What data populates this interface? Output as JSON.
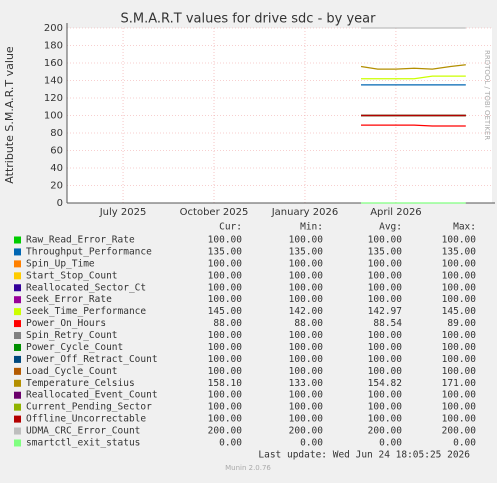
{
  "chart_data": {
    "type": "line",
    "title": "S.M.A.R.T values for drive sdc - by year",
    "y_label": "Attribute S.M.A.R.T value",
    "side_text": "RRDTOOL / TOBI OETIKER",
    "footer": "Last update: Wed Jun 24 18:05:25 2026",
    "version": "Munin 2.0.76",
    "grid": true,
    "ylim": [
      0,
      200
    ],
    "yticks": [
      0,
      20,
      40,
      60,
      80,
      100,
      120,
      140,
      160,
      180,
      200
    ],
    "xlim": [
      2025.346,
      2026.514
    ],
    "xticks": [
      {
        "value": 2025.5,
        "label": "July 2025"
      },
      {
        "value": 2025.75,
        "label": "October 2025"
      },
      {
        "value": 2026.0,
        "label": "January 2026"
      },
      {
        "value": 2026.25,
        "label": "April 2026"
      }
    ],
    "x": [
      2026.154,
      2026.2,
      2026.25,
      2026.3,
      2026.35,
      2026.4,
      2026.442
    ],
    "stat_headers": [
      "Cur:",
      "Min:",
      "Avg:",
      "Max:"
    ],
    "series": [
      {
        "name": "Raw_Read_Error_Rate",
        "color": "#00cc00",
        "values": [
          100,
          100,
          100,
          100,
          100,
          100,
          100
        ],
        "stats": [
          "100.00",
          "100.00",
          "100.00",
          "100.00"
        ]
      },
      {
        "name": "Throughput_Performance",
        "color": "#0066b3",
        "values": [
          135,
          135,
          135,
          135,
          135,
          135,
          135
        ],
        "stats": [
          "135.00",
          "135.00",
          "135.00",
          "135.00"
        ]
      },
      {
        "name": "Spin_Up_Time",
        "color": "#ff8000",
        "values": [
          100,
          100,
          100,
          100,
          100,
          100,
          100
        ],
        "stats": [
          "100.00",
          "100.00",
          "100.00",
          "100.00"
        ]
      },
      {
        "name": "Start_Stop_Count",
        "color": "#ffcc00",
        "values": [
          100,
          100,
          100,
          100,
          100,
          100,
          100
        ],
        "stats": [
          "100.00",
          "100.00",
          "100.00",
          "100.00"
        ]
      },
      {
        "name": "Reallocated_Sector_Ct",
        "color": "#330099",
        "values": [
          100,
          100,
          100,
          100,
          100,
          100,
          100
        ],
        "stats": [
          "100.00",
          "100.00",
          "100.00",
          "100.00"
        ]
      },
      {
        "name": "Seek_Error_Rate",
        "color": "#990099",
        "values": [
          100,
          100,
          100,
          100,
          100,
          100,
          100
        ],
        "stats": [
          "100.00",
          "100.00",
          "100.00",
          "100.00"
        ]
      },
      {
        "name": "Seek_Time_Performance",
        "color": "#ccff00",
        "values": [
          142,
          142,
          142,
          142,
          145,
          145,
          145
        ],
        "stats": [
          "145.00",
          "142.00",
          "142.97",
          "145.00"
        ]
      },
      {
        "name": "Power_On_Hours",
        "color": "#ff0000",
        "values": [
          89,
          89,
          89,
          89,
          88,
          88,
          88
        ],
        "stats": [
          "88.00",
          "88.00",
          "88.54",
          "89.00"
        ]
      },
      {
        "name": "Spin_Retry_Count",
        "color": "#808080",
        "values": [
          100,
          100,
          100,
          100,
          100,
          100,
          100
        ],
        "stats": [
          "100.00",
          "100.00",
          "100.00",
          "100.00"
        ]
      },
      {
        "name": "Power_Cycle_Count",
        "color": "#008f00",
        "values": [
          100,
          100,
          100,
          100,
          100,
          100,
          100
        ],
        "stats": [
          "100.00",
          "100.00",
          "100.00",
          "100.00"
        ]
      },
      {
        "name": "Power_Off_Retract_Count",
        "color": "#00487d",
        "values": [
          100,
          100,
          100,
          100,
          100,
          100,
          100
        ],
        "stats": [
          "100.00",
          "100.00",
          "100.00",
          "100.00"
        ]
      },
      {
        "name": "Load_Cycle_Count",
        "color": "#b35a00",
        "values": [
          100,
          100,
          100,
          100,
          100,
          100,
          100
        ],
        "stats": [
          "100.00",
          "100.00",
          "100.00",
          "100.00"
        ]
      },
      {
        "name": "Temperature_Celsius",
        "color": "#b38f00",
        "values": [
          156,
          153,
          153,
          154,
          153,
          156,
          158
        ],
        "stats": [
          "158.10",
          "133.00",
          "154.82",
          "171.00"
        ]
      },
      {
        "name": "Reallocated_Event_Count",
        "color": "#6b006b",
        "values": [
          100,
          100,
          100,
          100,
          100,
          100,
          100
        ],
        "stats": [
          "100.00",
          "100.00",
          "100.00",
          "100.00"
        ]
      },
      {
        "name": "Current_Pending_Sector",
        "color": "#8fb300",
        "values": [
          100,
          100,
          100,
          100,
          100,
          100,
          100
        ],
        "stats": [
          "100.00",
          "100.00",
          "100.00",
          "100.00"
        ]
      },
      {
        "name": "Offline_Uncorrectable",
        "color": "#b30000",
        "values": [
          100,
          100,
          100,
          100,
          100,
          100,
          100
        ],
        "stats": [
          "100.00",
          "100.00",
          "100.00",
          "100.00"
        ]
      },
      {
        "name": "UDMA_CRC_Error_Count",
        "color": "#bebebe",
        "values": [
          200,
          200,
          200,
          200,
          200,
          200,
          200
        ],
        "stats": [
          "200.00",
          "200.00",
          "200.00",
          "200.00"
        ]
      },
      {
        "name": "smartctl_exit_status",
        "color": "#80ff80",
        "values": [
          0,
          0,
          0,
          0,
          0,
          0,
          0
        ],
        "stats": [
          "0.00",
          "0.00",
          "0.00",
          "0.00"
        ]
      }
    ]
  }
}
